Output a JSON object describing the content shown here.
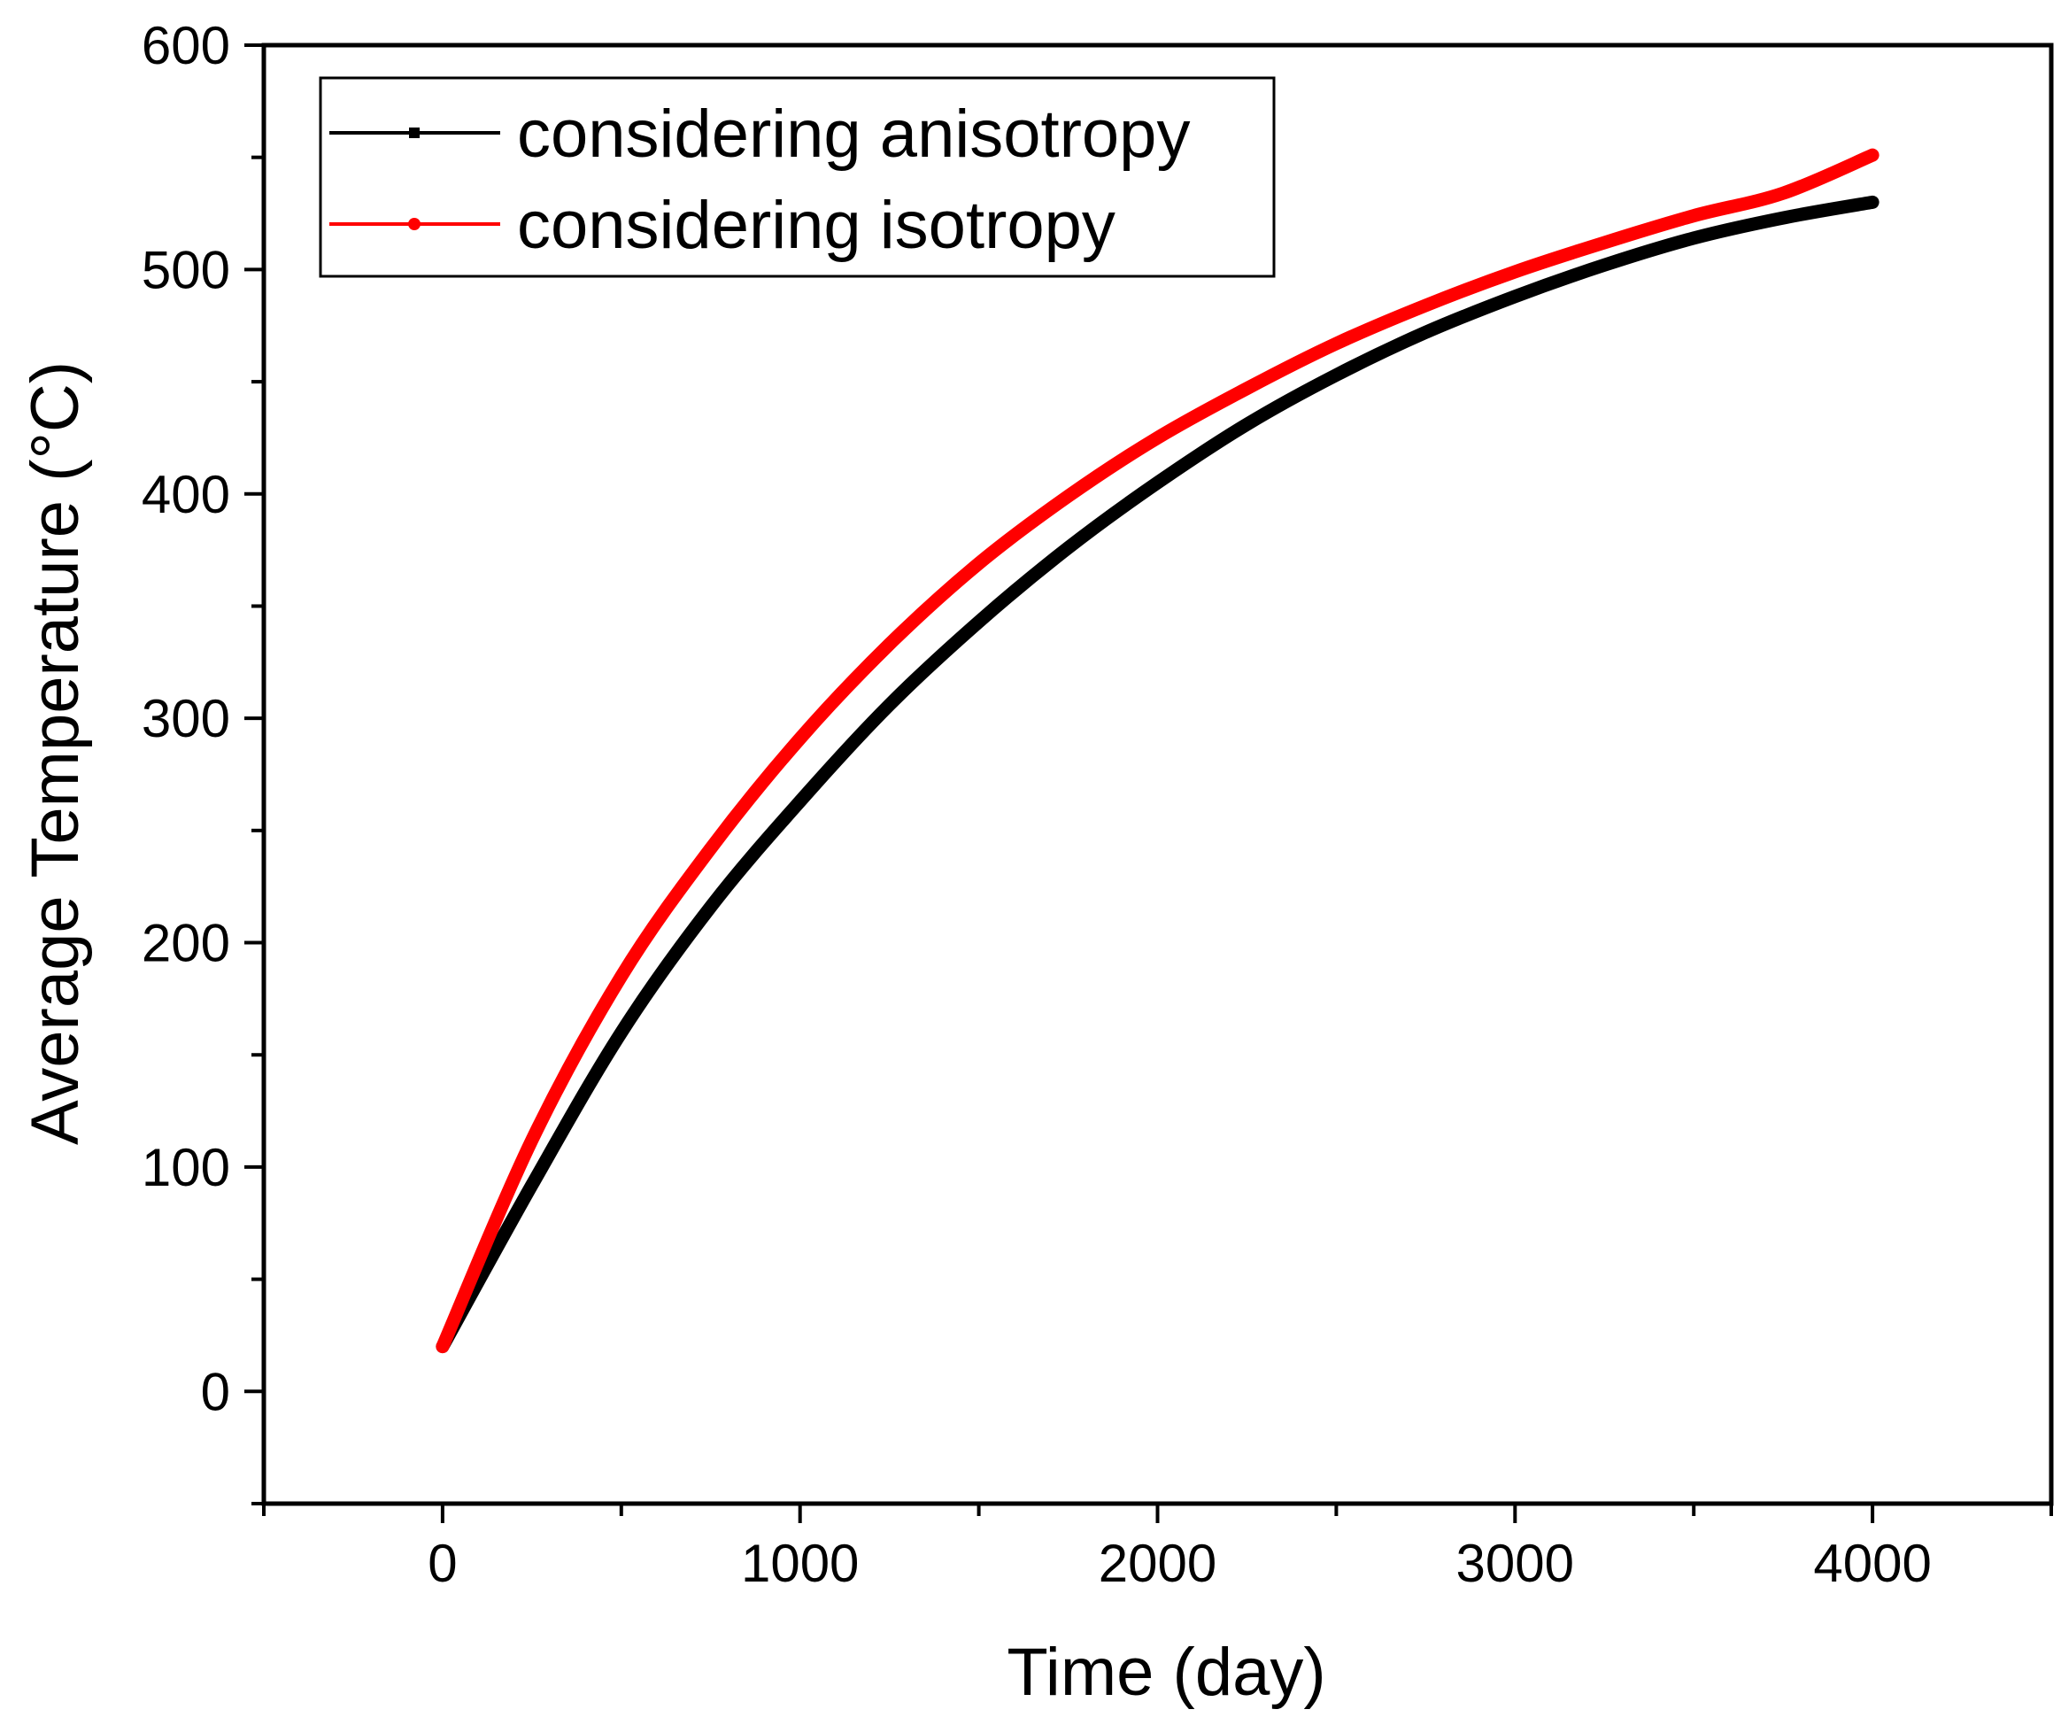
{
  "chart_data": {
    "type": "line",
    "title": "",
    "xlabel": "Time  (day)",
    "ylabel": "Average Temperature (°C)",
    "xlim": [
      -500,
      4500
    ],
    "ylim": [
      -50,
      600
    ],
    "xticks": [
      0,
      1000,
      2000,
      3000,
      4000
    ],
    "yticks": [
      0,
      100,
      200,
      300,
      400,
      500,
      600
    ],
    "x_minor_step": 500,
    "y_minor_step": 50,
    "legend_position": "top-left",
    "series": [
      {
        "name": "considering anisotropy",
        "color": "#000000",
        "x": [
          0,
          250,
          500,
          750,
          1000,
          1250,
          1500,
          1750,
          2000,
          2250,
          2500,
          2750,
          3000,
          3250,
          3500,
          3750,
          4000
        ],
        "y": [
          20,
          92,
          160,
          216,
          263,
          306,
          343,
          376,
          405,
          431,
          453,
          472,
          488,
          502,
          514,
          523,
          530
        ]
      },
      {
        "name": "considering isotropy",
        "color": "#ff0000",
        "x": [
          0,
          250,
          500,
          750,
          1000,
          1250,
          1500,
          1750,
          2000,
          2250,
          2500,
          2750,
          3000,
          3250,
          3500,
          3750,
          4000
        ],
        "y": [
          20,
          112,
          185,
          242,
          291,
          333,
          369,
          399,
          425,
          447,
          467,
          484,
          499,
          512,
          524,
          534,
          551
        ]
      }
    ]
  }
}
